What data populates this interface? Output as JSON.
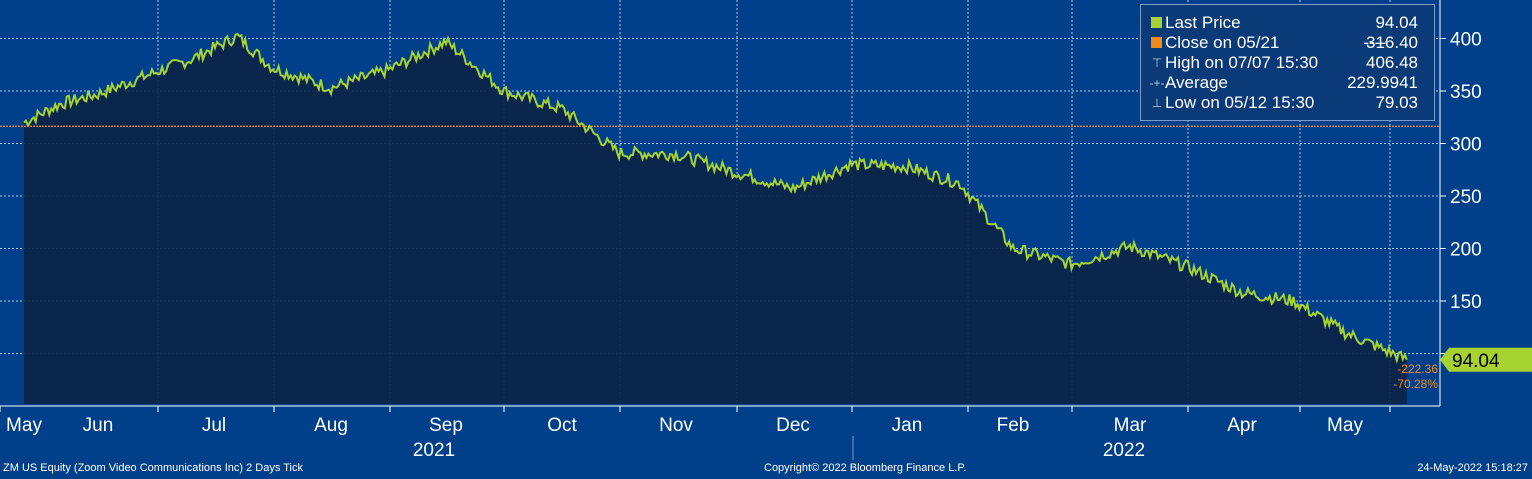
{
  "chart_data": {
    "type": "line",
    "ticker_description": "ZM US Equity (Zoom Video Communications Inc) 2 Days  Tick",
    "copyright": "Copyright© 2022 Bloomberg Finance L.P.",
    "timestamp": "24-May-2022 15:18:27",
    "ylim": [
      50,
      430
    ],
    "yticks": [
      150,
      200,
      250,
      300,
      350,
      400
    ],
    "ytick_labels": [
      "150",
      "200",
      "250",
      "300",
      "350",
      "400"
    ],
    "month_labels": [
      "May",
      "Jun",
      "Jul",
      "Aug",
      "Sep",
      "Oct",
      "Nov",
      "Dec",
      "Jan",
      "Feb",
      "Mar",
      "Apr",
      "May"
    ],
    "year_labels": [
      "2021",
      "2022"
    ],
    "series": [
      {
        "name": "Last Price",
        "color": "#a6d232",
        "x": [
          0,
          0.5,
          1,
          1.5,
          1.8,
          2.2,
          2.5,
          3,
          3.5,
          4,
          4.5,
          5,
          5.5,
          6,
          6.5,
          7,
          7.5,
          8,
          8.5,
          9,
          9.5,
          10,
          10.5,
          11,
          11.5,
          12,
          12.6
        ],
        "values": [
          320,
          338,
          347,
          368,
          380,
          402,
          372,
          353,
          370,
          397,
          350,
          333,
          291,
          290,
          273,
          257,
          280,
          278,
          262,
          200,
          185,
          202,
          183,
          158,
          150,
          120,
          94.04
        ]
      }
    ],
    "close_on": {
      "label": "Close on 05/21",
      "dashes": "----",
      "value": "316.40",
      "color": "#f08c1e"
    },
    "legend": {
      "last_price": {
        "label": "Last Price",
        "value": "94.04"
      },
      "close": {
        "label": "Close on 05/21",
        "value": "316.40"
      },
      "high": {
        "label": "High on 07/07 15:30",
        "value": "406.48"
      },
      "average": {
        "label": "Average",
        "value": "229.9941"
      },
      "low": {
        "label": "Low on 05/12 15:30",
        "value": "79.03"
      }
    },
    "last_price_tag": "94.04",
    "change_labels": [
      "-222.36",
      "-70.28%"
    ],
    "colors": {
      "background": "#00408a",
      "area": "#0b2447",
      "grid": "#b4c8e6",
      "axis_text": "#ffffff"
    },
    "grid": true,
    "legend_position": "top-right"
  }
}
